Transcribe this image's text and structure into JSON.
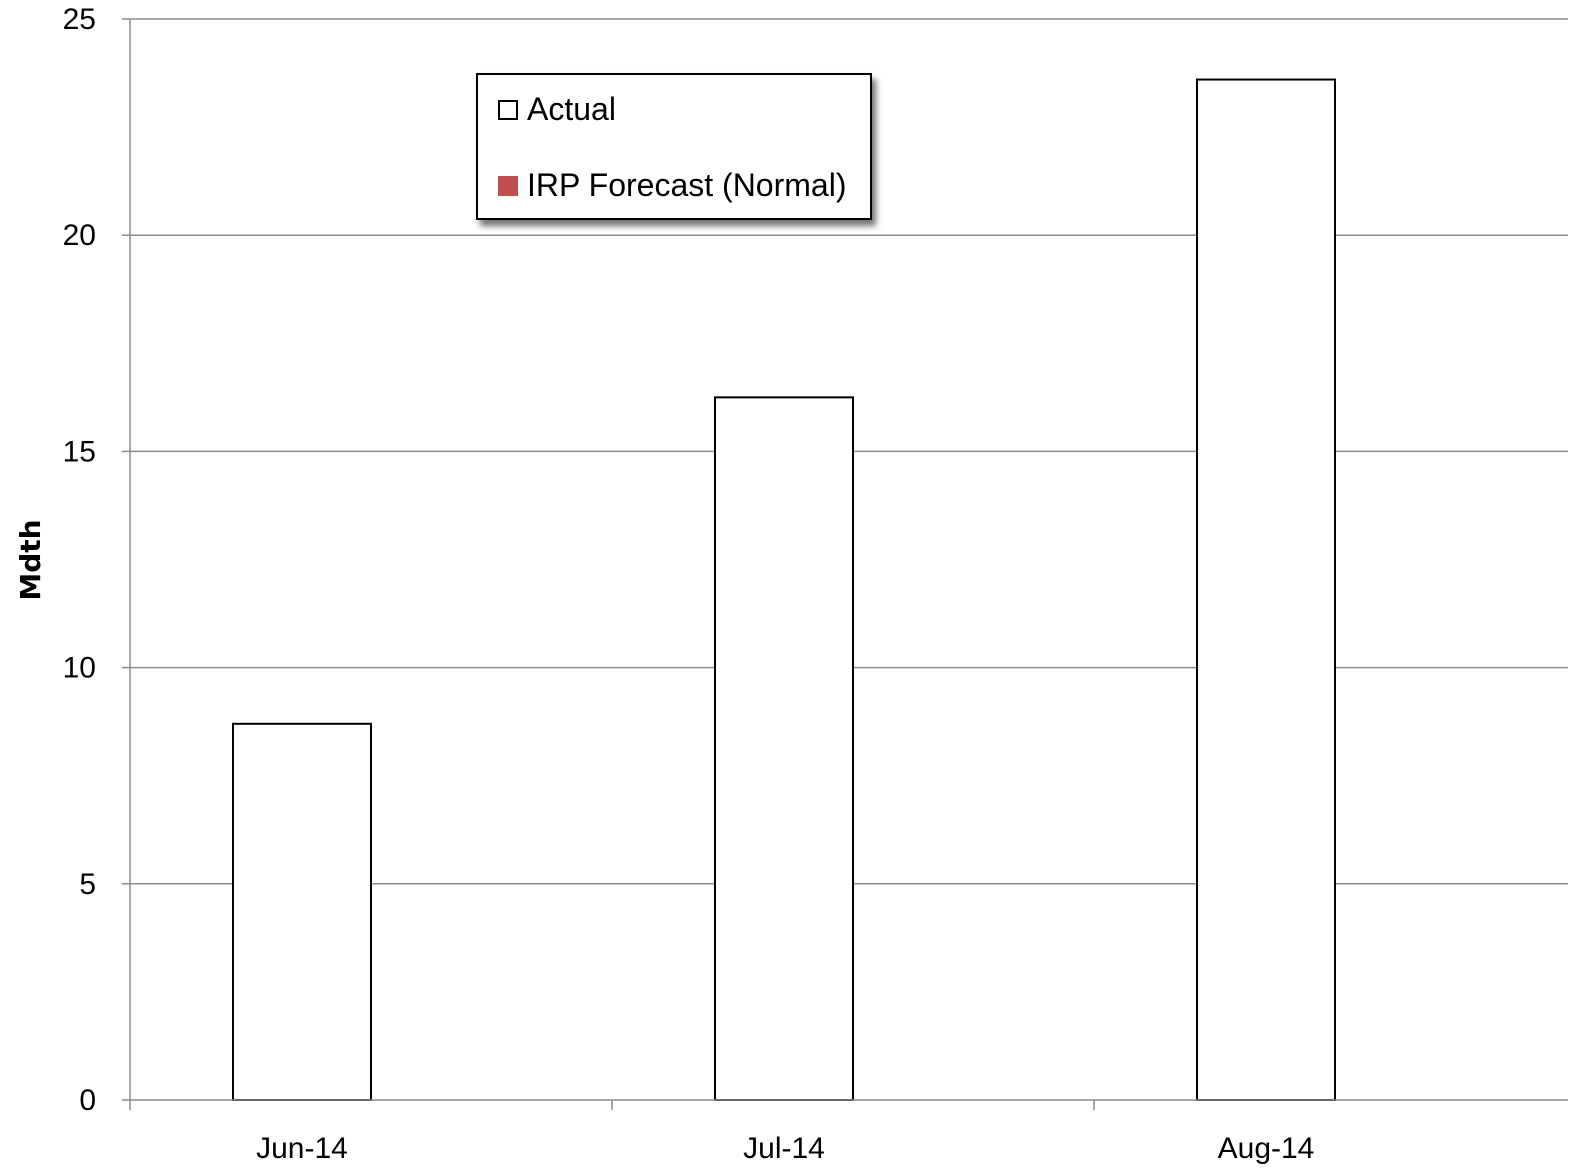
{
  "chart_data": {
    "type": "bar",
    "categories": [
      "Jun-14",
      "Jul-14",
      "Aug-14"
    ],
    "series": [
      {
        "name": "Actual",
        "values": [
          8.7,
          16.25,
          23.6
        ],
        "color": "#ffffff",
        "stroke": "#000000"
      },
      {
        "name": "IRP Forecast (Normal)",
        "values": [
          null,
          null,
          null
        ],
        "color": "#c0504d"
      }
    ],
    "title": "",
    "xlabel": "",
    "ylabel": "Mdth",
    "ylim": [
      0,
      25
    ],
    "yticks": [
      0,
      5,
      10,
      15,
      20,
      25
    ],
    "grid": true,
    "legend": "top-center"
  }
}
